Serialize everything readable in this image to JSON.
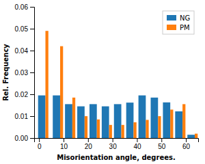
{
  "chart_data": {
    "type": "bar",
    "xlabel": "Misorientation angle, degrees.",
    "ylabel": "Rel. Frequency",
    "x": [
      2,
      8,
      13,
      18,
      23,
      28,
      33,
      38,
      43,
      48,
      53,
      58,
      63
    ],
    "series": [
      {
        "name": "NG",
        "values": [
          0.0195,
          0.0195,
          0.0155,
          0.0145,
          0.0155,
          0.0145,
          0.0155,
          0.0162,
          0.0195,
          0.0185,
          0.0163,
          0.0122,
          0.0015
        ]
      },
      {
        "name": "PM",
        "values": [
          0.049,
          0.042,
          0.0185,
          0.01,
          0.0085,
          0.006,
          0.006,
          0.0072,
          0.0083,
          0.01,
          0.013,
          0.0155,
          0.002
        ]
      }
    ],
    "xlim": [
      -2,
      65
    ],
    "xticks": [
      0,
      10,
      20,
      30,
      40,
      50,
      60
    ],
    "ylim": [
      0,
      0.06
    ],
    "yticks": [
      {
        "value": 0.0,
        "label": "0.00"
      },
      {
        "value": 0.01,
        "label": "0.01"
      },
      {
        "value": 0.02,
        "label": "0.02"
      },
      {
        "value": 0.03,
        "label": "0.03"
      },
      {
        "value": 0.04,
        "label": "0.04"
      },
      {
        "value": 0.05,
        "label": "0.05"
      },
      {
        "value": 0.06,
        "label": "0.06"
      }
    ],
    "legend": "upper right"
  }
}
